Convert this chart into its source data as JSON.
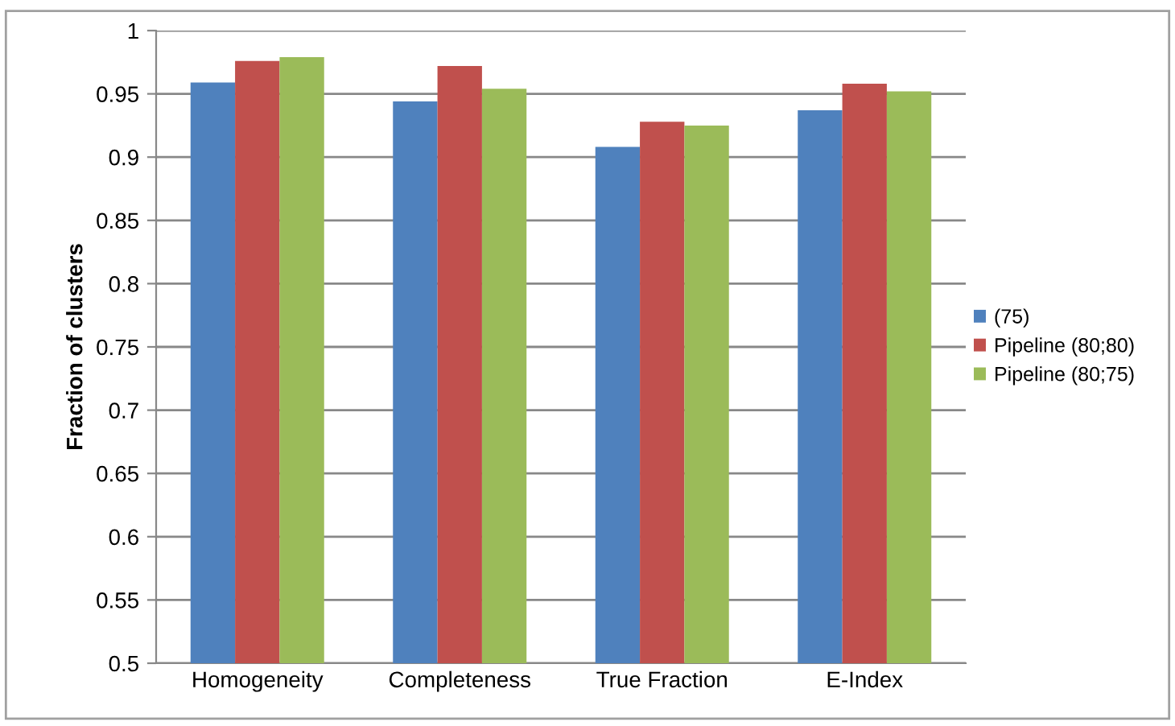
{
  "chart_data": {
    "type": "bar",
    "ylabel": "Fraction of clusters",
    "categories": [
      "Homogeneity",
      "Completeness",
      "True Fraction",
      "E-Index"
    ],
    "series": [
      {
        "name": "(75)",
        "color": "#4f81bd",
        "values": [
          0.959,
          0.944,
          0.908,
          0.937
        ]
      },
      {
        "name": "Pipeline (80;80)",
        "color": "#c0504d",
        "values": [
          0.976,
          0.972,
          0.928,
          0.958
        ]
      },
      {
        "name": "Pipeline (80;75)",
        "color": "#9bbb59",
        "values": [
          0.979,
          0.954,
          0.925,
          0.952
        ]
      }
    ],
    "ylim": [
      0.5,
      1
    ],
    "yticks": [
      0.5,
      0.55,
      0.6,
      0.65,
      0.7,
      0.75,
      0.8,
      0.85,
      0.9,
      0.95,
      1
    ],
    "grid": "y",
    "legend": "right"
  }
}
